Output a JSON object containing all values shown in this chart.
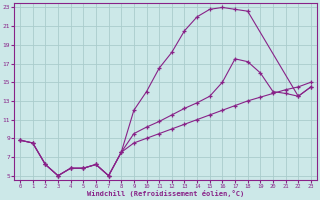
{
  "bg_color": "#cce8e8",
  "line_color": "#882288",
  "grid_color": "#aacccc",
  "xlabel": "Windchill (Refroidissement éolien,°C)",
  "xlim": [
    -0.5,
    23.5
  ],
  "ylim": [
    4.5,
    23.5
  ],
  "yticks": [
    5,
    7,
    9,
    11,
    13,
    15,
    17,
    19,
    21,
    23
  ],
  "xticks": [
    0,
    1,
    2,
    3,
    4,
    5,
    6,
    7,
    8,
    9,
    10,
    11,
    12,
    13,
    14,
    15,
    16,
    17,
    18,
    19,
    20,
    21,
    22,
    23
  ],
  "curve1_x": [
    0,
    1,
    2,
    3,
    4,
    5,
    6,
    7,
    8,
    9,
    10,
    11,
    12,
    13,
    14,
    15,
    16,
    17,
    18,
    22,
    23
  ],
  "curve1_y": [
    8.8,
    8.5,
    6.2,
    5.0,
    5.8,
    5.8,
    6.2,
    5.0,
    7.5,
    12.0,
    14.0,
    16.5,
    18.2,
    20.5,
    22.0,
    22.8,
    23.0,
    22.8,
    22.6,
    13.5,
    14.5
  ],
  "curve2_x": [
    0,
    1,
    2,
    3,
    4,
    5,
    6,
    7,
    8,
    9,
    10,
    11,
    12,
    13,
    14,
    15,
    16,
    17,
    18,
    19,
    20,
    21,
    22,
    23
  ],
  "curve2_y": [
    8.8,
    8.5,
    6.2,
    5.0,
    5.8,
    5.8,
    6.2,
    5.0,
    7.5,
    9.5,
    10.2,
    10.8,
    11.5,
    12.2,
    12.8,
    13.5,
    15.0,
    17.5,
    17.2,
    16.0,
    14.0,
    13.8,
    13.5,
    14.5
  ],
  "curve3_x": [
    0,
    1,
    2,
    3,
    4,
    5,
    6,
    7,
    8,
    9,
    10,
    11,
    12,
    13,
    14,
    15,
    16,
    17,
    18,
    19,
    20,
    21,
    22,
    23
  ],
  "curve3_y": [
    8.8,
    8.5,
    6.2,
    5.0,
    5.8,
    5.8,
    6.2,
    5.0,
    7.5,
    8.5,
    9.0,
    9.5,
    10.0,
    10.5,
    11.0,
    11.5,
    12.0,
    12.5,
    13.0,
    13.4,
    13.8,
    14.2,
    14.5,
    15.0
  ]
}
